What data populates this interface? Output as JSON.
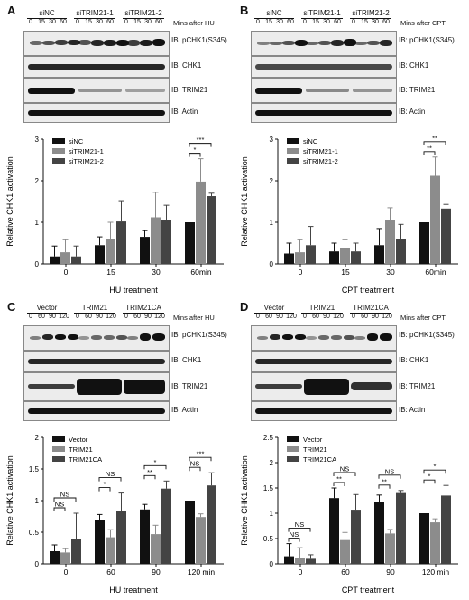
{
  "panels": [
    {
      "id": "A",
      "label": "A",
      "groups": [
        "siNC",
        "siTRIM21-1",
        "siTRIM21-2"
      ],
      "ticks": [
        "0",
        "15",
        "30",
        "60"
      ],
      "after": "Mins after HU",
      "blots": [
        "IB: pCHK1(S345)",
        "IB: CHK1",
        "IB: TRIM21",
        "IB: Actin"
      ],
      "significance": [
        "*",
        "***"
      ]
    },
    {
      "id": "B",
      "label": "B",
      "groups": [
        "siNC",
        "siTRIM21-1",
        "siTRIM21-2"
      ],
      "ticks": [
        "0",
        "15",
        "30",
        "60"
      ],
      "after": "Mins after CPT",
      "blots": [
        "IB: pCHK1(S345)",
        "IB: CHK1",
        "IB: TRIM21",
        "IB: Actin"
      ],
      "significance": [
        "**",
        "**"
      ]
    },
    {
      "id": "C",
      "label": "C",
      "groups": [
        "Vector",
        "TRIM21",
        "TRIM21CA"
      ],
      "ticks": [
        "0",
        "60",
        "90",
        "120"
      ],
      "after": "Mins after HU",
      "blots": [
        "IB: pCHK1(S345)",
        "IB: CHK1",
        "IB: TRIM21",
        "IB: Actin"
      ],
      "significance": [
        "NS",
        "NS",
        "*",
        "NS",
        "**",
        "*",
        "NS",
        "***"
      ]
    },
    {
      "id": "D",
      "label": "D",
      "groups": [
        "Vector",
        "TRIM21",
        "TRIM21CA"
      ],
      "ticks": [
        "0",
        "60",
        "90",
        "120"
      ],
      "after": "Mins after CPT",
      "blots": [
        "IB: pCHK1(S345)",
        "IB: CHK1",
        "IB: TRIM21",
        "IB: Actin"
      ],
      "significance": [
        "NS",
        "NS",
        "**",
        "NS",
        "**",
        "NS",
        "*",
        "*"
      ]
    }
  ],
  "colors": {
    "series1": "#111111",
    "series2": "#8c8c8c",
    "series3": "#444444"
  },
  "chart_data": [
    {
      "type": "bar",
      "panel": "A",
      "categories": [
        "0",
        "15",
        "30",
        "60min"
      ],
      "series": [
        {
          "name": "siNC",
          "values": [
            0.18,
            0.45,
            0.65,
            1.0
          ],
          "errors": [
            0.25,
            0.2,
            0.15,
            0.0
          ]
        },
        {
          "name": "siTRIM21-1",
          "values": [
            0.28,
            0.6,
            1.12,
            1.98
          ],
          "errors": [
            0.3,
            0.4,
            0.6,
            0.55
          ]
        },
        {
          "name": "siTRIM21-2",
          "values": [
            0.18,
            1.02,
            1.06,
            1.63
          ],
          "errors": [
            0.25,
            0.5,
            0.35,
            0.07
          ]
        }
      ],
      "xlabel": "HU treatment",
      "ylabel": "Relative CHK1 activation",
      "ylim": [
        0,
        3
      ],
      "yticks": [
        0,
        1,
        2,
        3
      ],
      "legend": "top-left"
    },
    {
      "type": "bar",
      "panel": "B",
      "categories": [
        "0",
        "15",
        "30",
        "60min"
      ],
      "series": [
        {
          "name": "siNC",
          "values": [
            0.25,
            0.3,
            0.45,
            1.0
          ],
          "errors": [
            0.25,
            0.2,
            0.4,
            0.0
          ]
        },
        {
          "name": "siTRIM21-1",
          "values": [
            0.28,
            0.38,
            1.05,
            2.12
          ],
          "errors": [
            0.3,
            0.2,
            0.3,
            0.45
          ]
        },
        {
          "name": "siTRIM21-2",
          "values": [
            0.45,
            0.3,
            0.6,
            1.33
          ],
          "errors": [
            0.45,
            0.2,
            0.35,
            0.1
          ]
        }
      ],
      "xlabel": "CPT treatment",
      "ylabel": "Relative CHK1 activation",
      "ylim": [
        0,
        3
      ],
      "yticks": [
        0,
        1,
        2,
        3
      ],
      "legend": "top-left"
    },
    {
      "type": "bar",
      "panel": "C",
      "categories": [
        "0",
        "60",
        "90",
        "120 min"
      ],
      "series": [
        {
          "name": "Vector",
          "values": [
            0.2,
            0.7,
            0.86,
            1.0
          ],
          "errors": [
            0.1,
            0.08,
            0.08,
            0.0
          ]
        },
        {
          "name": "TRIM21",
          "values": [
            0.18,
            0.42,
            0.47,
            0.74
          ],
          "errors": [
            0.06,
            0.12,
            0.14,
            0.05
          ]
        },
        {
          "name": "TRIM21CA",
          "values": [
            0.4,
            0.84,
            1.19,
            1.24
          ],
          "errors": [
            0.4,
            0.28,
            0.12,
            0.2
          ]
        }
      ],
      "xlabel": "HU treatment",
      "ylabel": "Relative CHK1 activation",
      "ylim": [
        0,
        2.0
      ],
      "yticks": [
        0.0,
        0.5,
        1.0,
        1.5,
        2.0
      ],
      "legend": "top-left"
    },
    {
      "type": "bar",
      "panel": "D",
      "categories": [
        "0",
        "60",
        "90",
        "120 min"
      ],
      "series": [
        {
          "name": "Vector",
          "values": [
            0.15,
            1.3,
            1.23,
            1.0
          ],
          "errors": [
            0.25,
            0.2,
            0.13,
            0.0
          ]
        },
        {
          "name": "TRIM21",
          "values": [
            0.12,
            0.47,
            0.6,
            0.82
          ],
          "errors": [
            0.2,
            0.15,
            0.08,
            0.07
          ]
        },
        {
          "name": "TRIM21CA",
          "values": [
            0.1,
            1.07,
            1.4,
            1.35
          ],
          "errors": [
            0.08,
            0.3,
            0.05,
            0.2
          ]
        }
      ],
      "xlabel": "CPT treatment",
      "ylabel": "Relative CHK1 activation",
      "ylim": [
        0,
        2.5
      ],
      "yticks": [
        0.0,
        0.5,
        1.0,
        1.5,
        2.0,
        2.5
      ],
      "legend": "top-left"
    }
  ]
}
